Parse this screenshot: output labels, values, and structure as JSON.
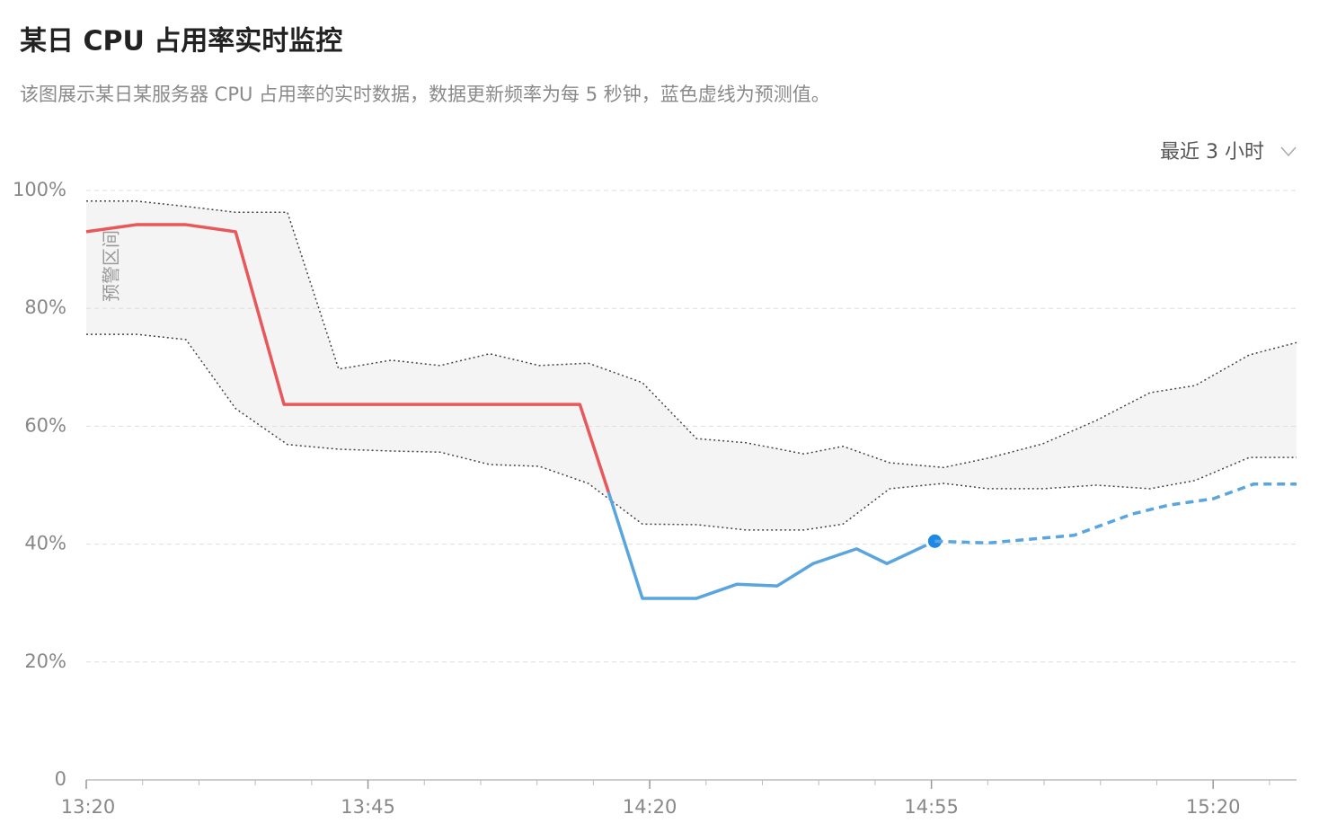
{
  "chart_data": {
    "type": "line",
    "title": "某日 CPU 占用率实时监控",
    "subtitle": "该图展示某日某服务器 CPU 占用率的实时数据，数据更新频率为每 5 秒钟，蓝色虚线为预测值。",
    "range_selector": "最近 3 小时",
    "xlim": [
      0,
      21.48
    ],
    "xticks": [
      {
        "value": 0,
        "label": "13:20"
      },
      {
        "value": 5,
        "label": "13:45"
      },
      {
        "value": 10,
        "label": "14:20"
      },
      {
        "value": 15,
        "label": "14:55"
      },
      {
        "value": 20,
        "label": "15:20"
      }
    ],
    "xminor_ticks": [
      1,
      2,
      3,
      4,
      6,
      7,
      8,
      9,
      11,
      12,
      13,
      14,
      16,
      17,
      18,
      19,
      21
    ],
    "ylim": [
      0,
      100
    ],
    "yticks": [
      0,
      {
        "value": 20,
        "label": "20%"
      },
      {
        "value": 40,
        "label": "40%"
      },
      {
        "value": 60,
        "label": "60%"
      },
      {
        "value": 80,
        "label": "80%"
      },
      {
        "value": 100,
        "label": "100%"
      }
    ],
    "grid": true,
    "band": {
      "label": "预警区间",
      "color": "#f4f4f4",
      "x": [
        0,
        0.89,
        1.77,
        2.65,
        3.57,
        4.48,
        5.41,
        6.28,
        7.16,
        8.04,
        8.91,
        9.87,
        10.83,
        11.71,
        12.74,
        13.43,
        14.26,
        15.22,
        16.01,
        16.97,
        17.93,
        18.88,
        19.68,
        20.64,
        21.48
      ],
      "upper": [
        98.2,
        98.2,
        97.3,
        96.3,
        96.3,
        69.7,
        71.2,
        70.3,
        72.3,
        70.3,
        70.7,
        67.4,
        57.9,
        57.2,
        55.3,
        56.6,
        53.8,
        53,
        54.6,
        57,
        61,
        65.7,
        66.9,
        72.1,
        74.2
      ],
      "lower": [
        75.6,
        75.6,
        74.7,
        63,
        56.9,
        56.1,
        55.8,
        55.6,
        53.5,
        53.2,
        50.3,
        43.4,
        43.3,
        42.4,
        42.4,
        43.4,
        49.4,
        50.3,
        49.4,
        49.4,
        50,
        49.4,
        50.8,
        54.7,
        54.7
      ]
    },
    "series": [
      {
        "color": "#e8575a",
        "style": "solid",
        "x": [
          0,
          0.89,
          1.77,
          2.65,
          3.51,
          8.76,
          9.27
        ],
        "values": [
          93,
          94.2,
          94.2,
          93,
          63.7,
          63.7,
          48.8
        ]
      },
      {
        "color": "#5aa5de",
        "style": "solid",
        "x": [
          9.27,
          9.87,
          10.83,
          11.55,
          12.26,
          12.9,
          13.67,
          14.21,
          15.06
        ],
        "values": [
          48.8,
          30.8,
          30.8,
          33.2,
          32.9,
          36.7,
          39.2,
          36.7,
          40.5
        ],
        "marker_last": "#1e88e5"
      },
      {
        "color": "#5aa5de",
        "style": "dashed",
        "x": [
          15.06,
          16.01,
          17.53,
          18.56,
          19.2,
          20,
          20.72,
          21.48
        ],
        "values": [
          40.5,
          40.2,
          41.5,
          45.1,
          46.6,
          47.7,
          50.2,
          50.2
        ]
      }
    ]
  }
}
